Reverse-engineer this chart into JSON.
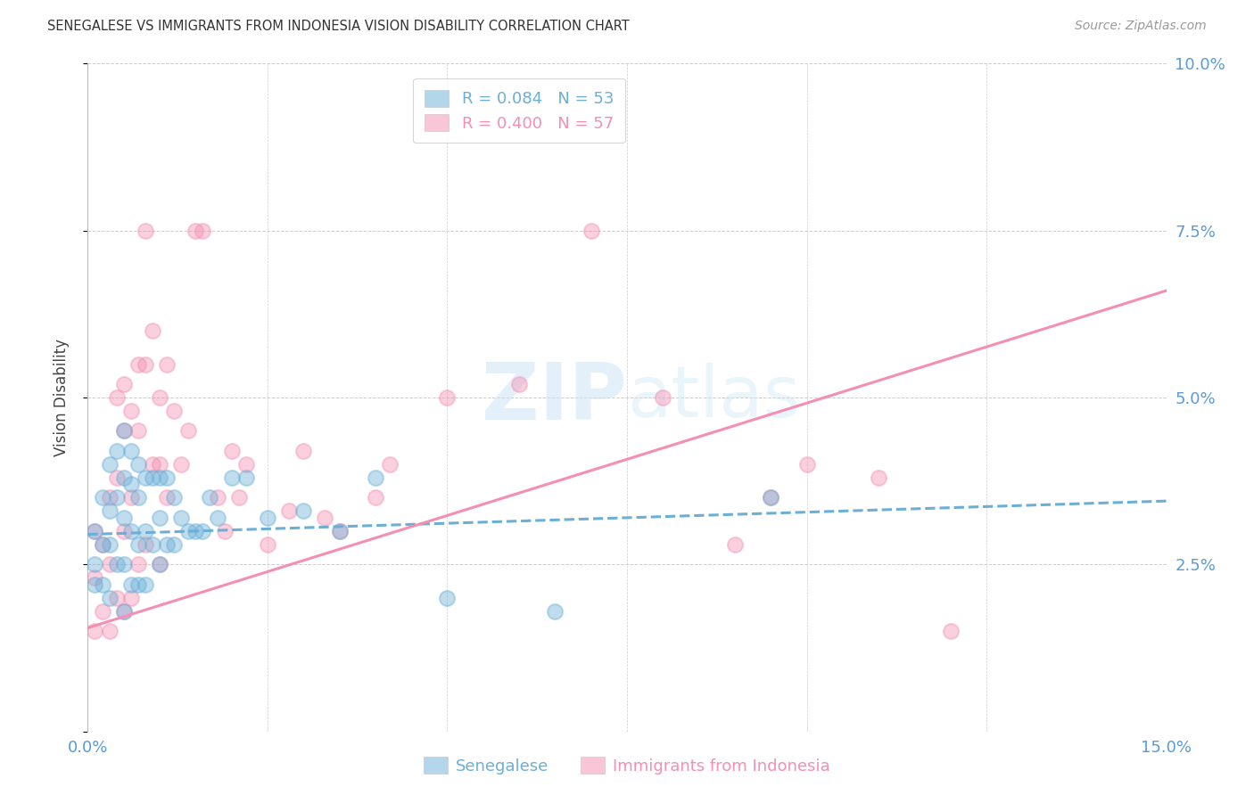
{
  "title": "SENEGALESE VS IMMIGRANTS FROM INDONESIA VISION DISABILITY CORRELATION CHART",
  "source": "Source: ZipAtlas.com",
  "ylabel": "Vision Disability",
  "xlim": [
    0.0,
    0.15
  ],
  "ylim": [
    0.0,
    0.1
  ],
  "senegalese_color": "#6baed6",
  "indonesia_color": "#f48fb1",
  "background_color": "#ffffff",
  "grid_color": "#cccccc",
  "axis_tick_color": "#5b9bd5",
  "title_color": "#333333",
  "source_color": "#999999",
  "legend_blue_text": "R = 0.084   N = 53",
  "legend_pink_text": "R = 0.400   N = 57",
  "watermark_color": "#cce4f5",
  "senegalese_scatter_x": [
    0.001,
    0.001,
    0.001,
    0.002,
    0.002,
    0.002,
    0.003,
    0.003,
    0.003,
    0.003,
    0.004,
    0.004,
    0.004,
    0.005,
    0.005,
    0.005,
    0.005,
    0.005,
    0.006,
    0.006,
    0.006,
    0.006,
    0.007,
    0.007,
    0.007,
    0.007,
    0.008,
    0.008,
    0.008,
    0.009,
    0.009,
    0.01,
    0.01,
    0.01,
    0.011,
    0.011,
    0.012,
    0.012,
    0.013,
    0.014,
    0.015,
    0.016,
    0.017,
    0.018,
    0.02,
    0.022,
    0.025,
    0.03,
    0.035,
    0.04,
    0.05,
    0.065,
    0.095
  ],
  "senegalese_scatter_y": [
    0.03,
    0.025,
    0.022,
    0.035,
    0.028,
    0.022,
    0.04,
    0.033,
    0.028,
    0.02,
    0.042,
    0.035,
    0.025,
    0.045,
    0.038,
    0.032,
    0.025,
    0.018,
    0.042,
    0.037,
    0.03,
    0.022,
    0.04,
    0.035,
    0.028,
    0.022,
    0.038,
    0.03,
    0.022,
    0.038,
    0.028,
    0.038,
    0.032,
    0.025,
    0.038,
    0.028,
    0.035,
    0.028,
    0.032,
    0.03,
    0.03,
    0.03,
    0.035,
    0.032,
    0.038,
    0.038,
    0.032,
    0.033,
    0.03,
    0.038,
    0.02,
    0.018,
    0.035
  ],
  "indonesia_scatter_x": [
    0.001,
    0.001,
    0.001,
    0.002,
    0.002,
    0.003,
    0.003,
    0.003,
    0.004,
    0.004,
    0.004,
    0.005,
    0.005,
    0.005,
    0.005,
    0.006,
    0.006,
    0.006,
    0.007,
    0.007,
    0.007,
    0.008,
    0.008,
    0.008,
    0.009,
    0.009,
    0.01,
    0.01,
    0.01,
    0.011,
    0.011,
    0.012,
    0.013,
    0.014,
    0.015,
    0.016,
    0.018,
    0.019,
    0.02,
    0.021,
    0.022,
    0.025,
    0.028,
    0.03,
    0.033,
    0.035,
    0.04,
    0.042,
    0.05,
    0.06,
    0.07,
    0.08,
    0.09,
    0.095,
    0.1,
    0.11,
    0.12
  ],
  "indonesia_scatter_y": [
    0.03,
    0.023,
    0.015,
    0.028,
    0.018,
    0.035,
    0.025,
    0.015,
    0.05,
    0.038,
    0.02,
    0.052,
    0.045,
    0.03,
    0.018,
    0.048,
    0.035,
    0.02,
    0.055,
    0.045,
    0.025,
    0.075,
    0.055,
    0.028,
    0.06,
    0.04,
    0.05,
    0.04,
    0.025,
    0.055,
    0.035,
    0.048,
    0.04,
    0.045,
    0.075,
    0.075,
    0.035,
    0.03,
    0.042,
    0.035,
    0.04,
    0.028,
    0.033,
    0.042,
    0.032,
    0.03,
    0.035,
    0.04,
    0.05,
    0.052,
    0.075,
    0.05,
    0.028,
    0.035,
    0.04,
    0.038,
    0.015
  ],
  "sene_line": {
    "x0": 0.0,
    "x1": 0.15,
    "y0": 0.0295,
    "y1": 0.0345
  },
  "indo_line": {
    "x0": 0.0,
    "x1": 0.15,
    "y0": 0.0155,
    "y1": 0.066
  }
}
